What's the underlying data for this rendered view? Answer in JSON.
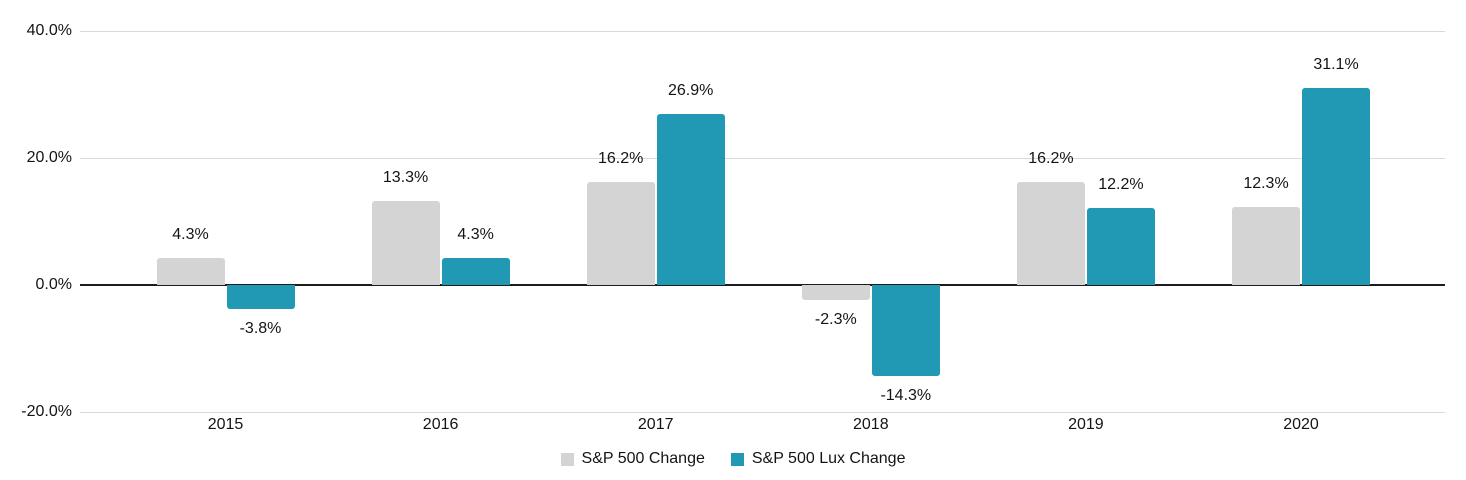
{
  "chart_data": {
    "type": "bar",
    "title": "",
    "categories": [
      "2015",
      "2016",
      "2017",
      "2018",
      "2019",
      "2020"
    ],
    "series": [
      {
        "name": "S&P 500 Change",
        "color": "#d4d4d4",
        "values": [
          4.3,
          13.3,
          16.2,
          -2.3,
          16.2,
          12.3
        ],
        "labels": [
          "4.3%",
          "13.3%",
          "16.2%",
          "-2.3%",
          "16.2%",
          "12.3%"
        ]
      },
      {
        "name": "S&P 500 Lux Change",
        "color": "#2199b4",
        "values": [
          -3.8,
          4.3,
          26.9,
          -14.3,
          12.2,
          31.1
        ],
        "labels": [
          "-3.8%",
          "4.3%",
          "26.9%",
          "-14.3%",
          "12.2%",
          "31.1%"
        ]
      }
    ],
    "y_axis": {
      "range": [
        -20,
        40
      ],
      "grid": true,
      "ticks": [
        {
          "value": 40,
          "label": "40.0%"
        },
        {
          "value": 20,
          "label": "20.0%"
        },
        {
          "value": 0,
          "label": "0.0%"
        },
        {
          "value": -20,
          "label": "-20.0%"
        }
      ]
    },
    "x_axis": {
      "tick_labels": [
        "2015",
        "2016",
        "2017",
        "2018",
        "2019",
        "2020"
      ]
    },
    "legend": {
      "position": "bottom",
      "items": [
        "S&P 500 Change",
        "S&P 500 Lux Change"
      ]
    }
  },
  "colors": {
    "background": "#ffffff",
    "gridline": "#d9d9d9",
    "zero_line": "#1c1c1c",
    "text": "#141414",
    "series_gray": "#d4d4d4",
    "series_teal": "#2199b4"
  }
}
